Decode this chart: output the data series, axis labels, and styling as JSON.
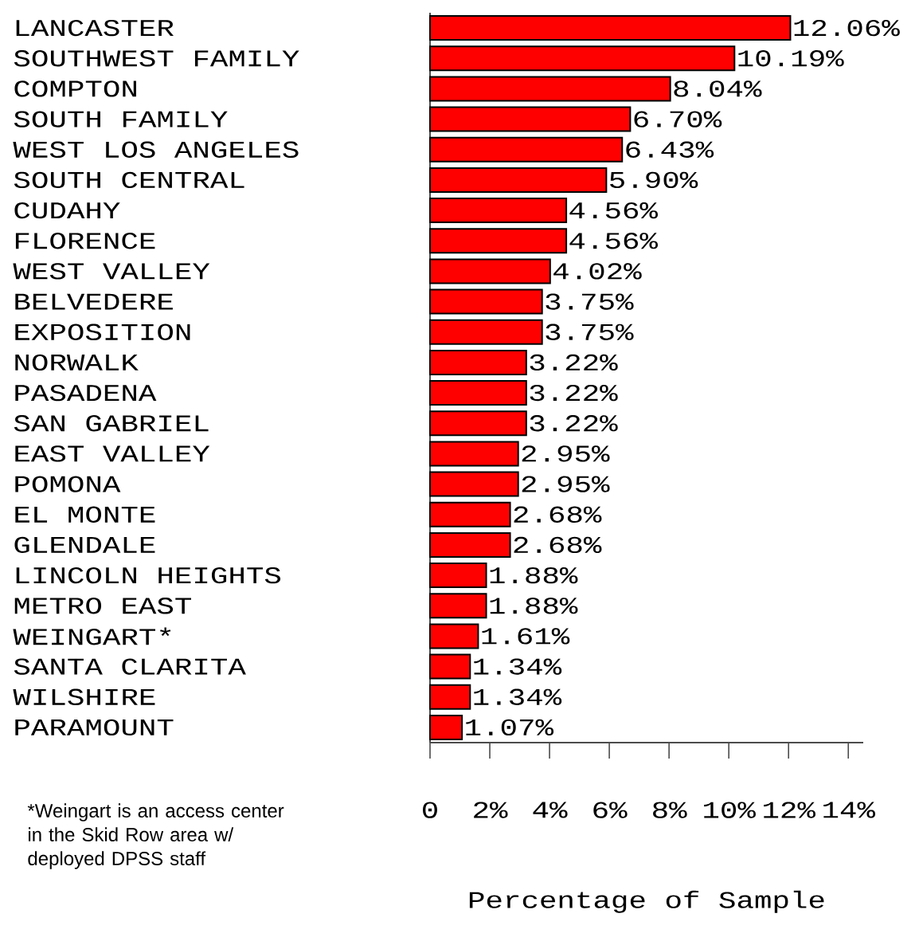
{
  "chart_data": {
    "type": "bar",
    "orientation": "horizontal",
    "categories": [
      "LANCASTER",
      "SOUTHWEST FAMILY",
      "COMPTON",
      "SOUTH FAMILY",
      "WEST LOS ANGELES",
      "SOUTH CENTRAL",
      "CUDAHY",
      "FLORENCE",
      "WEST VALLEY",
      "BELVEDERE",
      "EXPOSITION",
      "NORWALK",
      "PASADENA",
      "SAN GABRIEL",
      "EAST VALLEY",
      "POMONA",
      "EL MONTE",
      "GLENDALE",
      "LINCOLN HEIGHTS",
      "METRO EAST",
      "WEINGART*",
      "SANTA CLARITA",
      "WILSHIRE",
      "PARAMOUNT"
    ],
    "values": [
      12.06,
      10.19,
      8.04,
      6.7,
      6.43,
      5.9,
      4.56,
      4.56,
      4.02,
      3.75,
      3.75,
      3.22,
      3.22,
      3.22,
      2.95,
      2.95,
      2.68,
      2.68,
      1.88,
      1.88,
      1.61,
      1.34,
      1.34,
      1.07
    ],
    "value_labels": [
      "12.06%",
      "10.19%",
      "8.04%",
      "6.70%",
      "6.43%",
      "5.90%",
      "4.56%",
      "4.56%",
      "4.02%",
      "3.75%",
      "3.75%",
      "3.22%",
      "3.22%",
      "3.22%",
      "2.95%",
      "2.95%",
      "2.68%",
      "2.68%",
      "1.88%",
      "1.88%",
      "1.61%",
      "1.34%",
      "1.34%",
      "1.07%"
    ],
    "color": "#ff0000",
    "xlim": [
      0,
      14.5
    ],
    "xticks": [
      0,
      {
        "value": 2,
        "label": "2%"
      },
      {
        "value": 4,
        "label": "4%"
      },
      {
        "value": 6,
        "label": "6%"
      },
      {
        "value": 8,
        "label": "8%"
      },
      {
        "value": 10,
        "label": "10%"
      },
      {
        "value": 12,
        "label": "12%"
      },
      {
        "value": 14,
        "label": "14%"
      }
    ],
    "xlabel": "Percentage of Sample",
    "annotations": [
      "*Weingart is an access center in the Skid Row area w/ deployed DPSS staff"
    ]
  }
}
